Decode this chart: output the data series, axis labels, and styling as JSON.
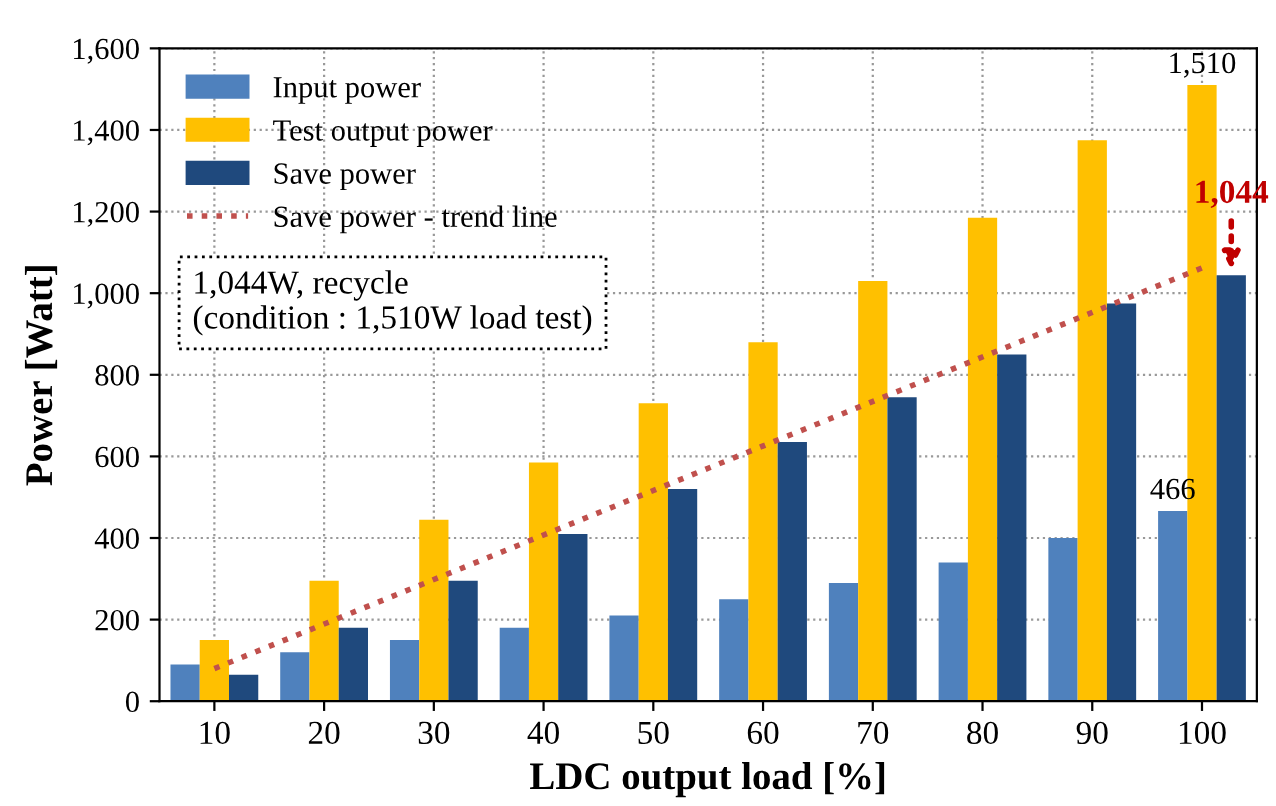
{
  "chart_data": {
    "type": "bar",
    "xlabel": "LDC output load [%]",
    "ylabel": "Power [Watt]",
    "categories": [
      "10",
      "20",
      "30",
      "40",
      "50",
      "60",
      "70",
      "80",
      "90",
      "100"
    ],
    "series": [
      {
        "name": "Input power",
        "color": "#4f81bd",
        "values": [
          90,
          120,
          150,
          180,
          210,
          250,
          290,
          340,
          400,
          466
        ],
        "value_labels": [
          null,
          null,
          null,
          null,
          null,
          null,
          null,
          null,
          null,
          "466"
        ]
      },
      {
        "name": "Test output power",
        "color": "#ffc000",
        "values": [
          150,
          295,
          445,
          585,
          730,
          880,
          1030,
          1185,
          1375,
          1510
        ],
        "value_labels": [
          null,
          null,
          null,
          null,
          null,
          null,
          null,
          null,
          null,
          "1,510"
        ]
      },
      {
        "name": "Save power",
        "color": "#1f497d",
        "values": [
          65,
          180,
          295,
          410,
          520,
          635,
          745,
          850,
          975,
          1044
        ]
      },
      {
        "name": "Save power - trend line",
        "type": "line",
        "color": "#c0504d",
        "line_style": "dotted",
        "x": [
          "10",
          "100"
        ],
        "values": [
          80,
          1062
        ]
      }
    ],
    "ylim": [
      0,
      1600
    ],
    "yticks": [
      0,
      {
        "value": 200,
        "label": "200"
      },
      {
        "value": 400,
        "label": "400"
      },
      {
        "value": 600,
        "label": "600"
      },
      {
        "value": 800,
        "label": "800"
      },
      {
        "value": 1000,
        "label": "1,000"
      },
      {
        "value": 1200,
        "label": "1,200"
      },
      {
        "value": 1400,
        "label": "1,400"
      },
      {
        "value": 1600,
        "label": "1,600"
      }
    ],
    "grid": true,
    "legend": "top left",
    "annotations": [
      {
        "text": "1,044",
        "x": "100",
        "y": 1044
      },
      "1,044W, recycle\n(condition : 1,510W load test)"
    ]
  }
}
